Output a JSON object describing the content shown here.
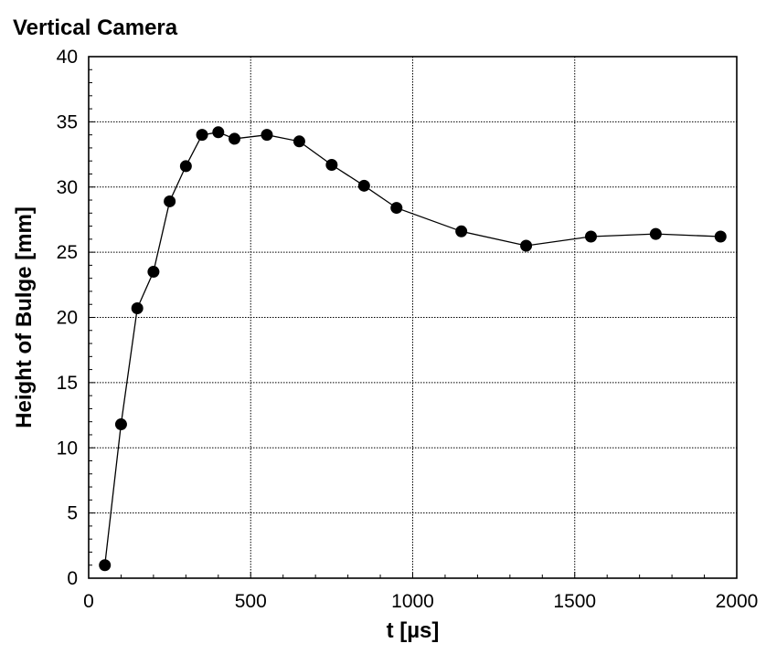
{
  "chart_data": {
    "type": "line",
    "title": "Vertical Camera",
    "xlabel": "t [µs]",
    "ylabel": "Height of Bulge [mm]",
    "xlim": [
      0,
      2000
    ],
    "ylim": [
      0,
      40
    ],
    "x_ticks": [
      0,
      500,
      1000,
      1500,
      2000
    ],
    "y_ticks": [
      0,
      5,
      10,
      15,
      20,
      25,
      30,
      35,
      40
    ],
    "grid": true,
    "series": [
      {
        "marker": "filled-circle",
        "color": "#000000",
        "x": [
          50,
          100,
          150,
          200,
          250,
          300,
          350,
          400,
          450,
          550,
          650,
          750,
          850,
          950,
          1150,
          1350,
          1550,
          1750,
          1950
        ],
        "y": [
          1.0,
          11.8,
          20.7,
          23.5,
          28.9,
          31.6,
          34.0,
          34.2,
          33.7,
          34.0,
          33.5,
          31.7,
          30.1,
          28.4,
          26.6,
          25.5,
          26.2,
          26.4,
          26.2
        ]
      }
    ]
  }
}
